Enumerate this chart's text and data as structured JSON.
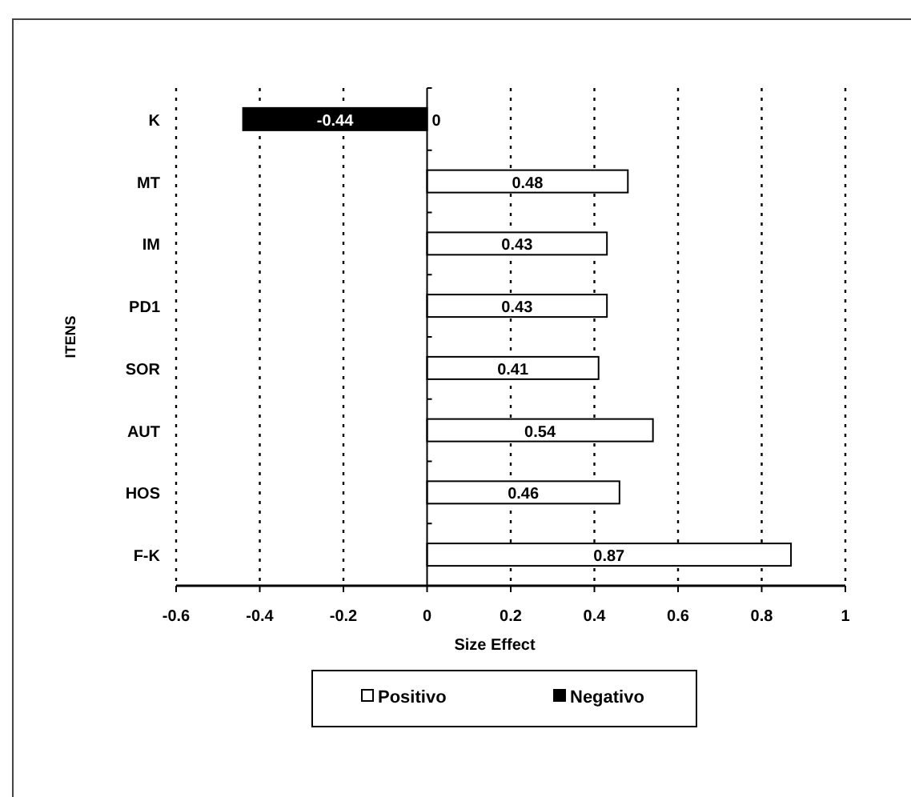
{
  "chart_data": {
    "type": "bar",
    "orientation": "horizontal",
    "stacked": true,
    "xlabel": "Size Effect",
    "ylabel": "ITENS",
    "categories": [
      "K",
      "MT",
      "IM",
      "PD1",
      "SOR",
      "AUT",
      "HOS",
      "F-K"
    ],
    "series": [
      {
        "name": "Positivo",
        "color": "#ffffff",
        "values": [
          0,
          0.48,
          0.43,
          0.43,
          0.41,
          0.54,
          0.46,
          0.87
        ]
      },
      {
        "name": "Negativo",
        "color": "#000000",
        "values": [
          -0.44,
          null,
          null,
          null,
          null,
          null,
          null,
          null
        ]
      }
    ],
    "xlim": [
      -0.6,
      1
    ],
    "xticks": [
      -0.6,
      -0.4,
      -0.2,
      0,
      0.2,
      0.4,
      0.6,
      0.8,
      1
    ],
    "grid": "x",
    "legend": "bottom",
    "data_labels": true
  }
}
